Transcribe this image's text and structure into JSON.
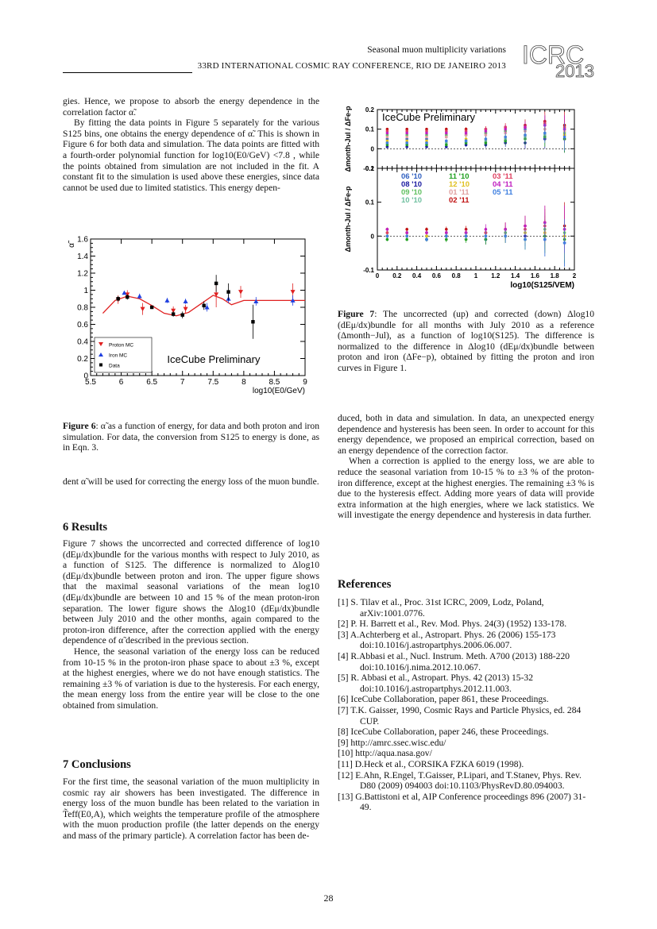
{
  "header": {
    "line1": "Seasonal muon multiplicity variations",
    "line2": "33RD INTERNATIONAL COSMIC RAY CONFERENCE, RIO DE JANEIRO 2013",
    "logo_text": "ICRC 2013"
  },
  "left": {
    "p1": "gies. Hence, we propose to absorb the energy dependence in the correlation factor α̃.",
    "p2": "By fitting the data points in Figure 5 separately for the various S125 bins, one obtains the energy dependence of α̃. This is shown in Figure 6 for both data and simulation. The data points are fitted with a fourth-order polynomial function for log10(E0/GeV) <7.8 , while the points obtained from simulation are not included in the fit. A constant fit to the simulation is used above these energies, since data cannot be used due to limited statistics. This energy depen-",
    "fig6_caption_label": "Figure 6",
    "fig6_caption": ": α̃ as a function of energy, for data and both proton and iron simulation. For data, the conversion from S125 to energy is done, as in Eqn. 3.",
    "p3": "dent α̃ will be used for correcting the energy loss of the muon bundle.",
    "sec6": "6   Results",
    "p4": "Figure 7 shows the uncorrected and corrected difference of log10 (dEμ/dx)bundle for the various months with respect to July 2010, as a function of S125. The difference is normalized to Δlog10 (dEμ/dx)bundle between proton and iron. The upper figure shows that the maximal seasonal variations of the mean log10 (dEμ/dx)bundle are between 10 and 15 % of the mean proton-iron separation. The lower figure shows the Δlog10 (dEμ/dx)bundle between July 2010 and the other months, again compared to the proton-iron difference, after the correction applied with the energy dependence of α̃ described in the previous section.",
    "p5": "Hence, the seasonal variation of the energy loss can be reduced from 10-15 % in the proton-iron phase space to about ±3 %, except at the highest energies, where we do not have enough statistics. The remaining ±3 % of variation is due to the hysteresis. For each energy, the mean energy loss from the entire year will be close to the one obtained from simulation.",
    "sec7": "7   Conclusions",
    "p6": "For the first time, the seasonal variation of the muon multiplicity in cosmic ray air showers has been investigated. The difference in energy loss of the muon bundle has been related to the variation in T̃eff(E0,A), which weights the temperature profile of the atmosphere with the muon production profile (the latter depends on the energy and mass of the primary particle). A correlation factor has been de-"
  },
  "right": {
    "fig7_caption_label": "Figure 7",
    "fig7_caption": ": The uncorrected (up) and corrected (down) Δlog10 (dEμ/dx)bundle for all months with July 2010 as a reference (Δmonth−Jul), as a function of log10(S125). The difference is normalized to the difference in Δlog10 (dEμ/dx)bundle between proton and iron (ΔFe−p), obtained by fitting the proton and iron curves in Figure 1.",
    "p1": "duced, both in data and simulation. In data, an unexpected energy dependence and hysteresis has been seen. In order to account for this energy dependence, we proposed an empirical correction, based on an energy dependence of the correction factor.",
    "p2": "When a correction is applied to the energy loss, we are able to reduce the seasonal variation from 10-15 % to ±3 % of the proton-iron difference, except at the highest energies. The remaining ±3 % is due to the hysteresis effect. Adding more years of data will provide extra information at the high energies, where we lack statistics. We will investigate the energy dependence and hysteresis in data further.",
    "refs_title": "References",
    "refs": [
      "[1]  S. Tilav et al., Proc. 31st ICRC, 2009, Lodz, Poland, arXiv:1001.0776.",
      "[2]  P. H. Barrett et al., Rev. Mod. Phys. 24(3) (1952) 133-178.",
      "[3]  A.Achterberg et al., Astropart. Phys. 26 (2006) 155-173 doi:10.1016/j.astropartphys.2006.06.007.",
      "[4]  R.Abbasi et al., Nucl. Instrum. Meth. A700 (2013) 188-220 doi:10.1016/j.nima.2012.10.067.",
      "[5]  R. Abbasi et al., Astropart. Phys. 42 (2013) 15-32 doi:10.1016/j.astropartphys.2012.11.003.",
      "[6]  IceCube Collaboration, paper 861, these Proceedings.",
      "[7]  T.K. Gaisser, 1990, Cosmic Rays and Particle Physics, ed. 284 CUP.",
      "[8]  IceCube Collaboration, paper 246, these Proceedings.",
      "[9]  http://amrc.ssec.wisc.edu/",
      "[10]  http://aqua.nasa.gov/",
      "[11]  D.Heck et al., CORSIKA FZKA 6019 (1998).",
      "[12]  E.Ahn, R.Engel, T.Gaisser, P.Lipari, and T.Stanev, Phys. Rev. D80 (2009) 094003 doi:10.1103/PhysRevD.80.094003.",
      "[13]  G.Battistoni et al, AIP Conference proceedings 896 (2007) 31-49."
    ]
  },
  "page_number": "28",
  "chart_data": [
    {
      "type": "scatter",
      "title": "IceCube Preliminary",
      "xlabel": "log10(E0/GeV)",
      "ylabel": "α̃",
      "xlim": [
        5.5,
        9
      ],
      "ylim": [
        0,
        1.6
      ],
      "xticks": [
        "5.5",
        "6",
        "6.5",
        "7",
        "7.5",
        "8",
        "8.5",
        "9"
      ],
      "yticks": [
        "0",
        "0.2",
        "0.4",
        "0.6",
        "0.8",
        "1",
        "1.2",
        "1.4",
        "1.6"
      ],
      "legend": [
        "Proton MC",
        "Iron MC",
        "Data"
      ],
      "legend_position": "bottom-left",
      "colors": {
        "proton": "#e02020",
        "iron": "#2040e0",
        "data": "#000000",
        "fit": "#e02020"
      },
      "series": [
        {
          "name": "Proton MC",
          "x": [
            5.95,
            6.1,
            6.35,
            6.85,
            7.05,
            7.55,
            7.95,
            8.8
          ],
          "y": [
            0.89,
            0.95,
            0.78,
            0.76,
            0.78,
            0.95,
            0.98,
            0.98
          ],
          "err": [
            0.05,
            0.05,
            0.07,
            0.05,
            0.05,
            0.15,
            0.07,
            0.1
          ]
        },
        {
          "name": "Iron MC",
          "x": [
            6.05,
            6.3,
            6.75,
            7.05,
            7.4,
            7.75,
            8.2,
            8.8
          ],
          "y": [
            0.97,
            0.93,
            0.88,
            0.87,
            0.8,
            0.9,
            0.87,
            0.88
          ],
          "err": [
            0.02,
            0.03,
            0.03,
            0.03,
            0.05,
            0.05,
            0.05,
            0.06
          ]
        },
        {
          "name": "Data",
          "x": [
            5.95,
            6.1,
            6.5,
            6.85,
            7.0,
            7.35,
            7.55,
            7.75,
            8.15
          ],
          "y": [
            0.9,
            0.92,
            0.8,
            0.72,
            0.71,
            0.82,
            1.08,
            0.98,
            0.63
          ],
          "err": [
            0.03,
            0.03,
            0.02,
            0.03,
            0.04,
            0.05,
            0.1,
            0.1,
            0.2
          ]
        }
      ],
      "fit": {
        "name": "fit",
        "x": [
          5.7,
          5.9,
          6.1,
          6.3,
          6.5,
          6.7,
          6.9,
          7.1,
          7.3,
          7.5,
          7.65,
          7.8,
          8.0,
          8.5,
          9.0
        ],
        "y": [
          0.73,
          0.88,
          0.93,
          0.9,
          0.82,
          0.73,
          0.7,
          0.74,
          0.84,
          0.94,
          0.9,
          0.83,
          0.88,
          0.88,
          0.88
        ]
      }
    },
    {
      "type": "scatter",
      "title": "IceCube Preliminary",
      "xlabel": "log10(S125/VEM)",
      "ylabel_top": "Δmonth-Jul / ΔFe-p",
      "ylabel_bottom": "Δmonth-Jul / ΔFe-p",
      "xlim": [
        0,
        2
      ],
      "ylim_top": [
        -0.1,
        0.2
      ],
      "ylim_bottom": [
        -0.1,
        0.2
      ],
      "xticks": [
        "0",
        "0.2",
        "0.4",
        "0.6",
        "0.8",
        "1",
        "1.2",
        "1.4",
        "1.6",
        "1.8",
        "2"
      ],
      "yticks": [
        "-0.1",
        "0",
        "0.1",
        "0.2"
      ],
      "x_points": [
        0.1,
        0.3,
        0.5,
        0.7,
        0.9,
        1.1,
        1.3,
        1.5,
        1.7,
        1.9
      ],
      "legend": [
        {
          "label": "06 '10",
          "color": "#3060c0"
        },
        {
          "label": "08 '10",
          "color": "#1a1aa0"
        },
        {
          "label": "09 '10",
          "color": "#60c060"
        },
        {
          "label": "10 '10",
          "color": "#70c0a0"
        },
        {
          "label": "11 '10",
          "color": "#20a020"
        },
        {
          "label": "12 '10",
          "color": "#e0c020"
        },
        {
          "label": "01 '11",
          "color": "#e0a0a0"
        },
        {
          "label": "02 '11",
          "color": "#c01010"
        },
        {
          "label": "03 '11",
          "color": "#e04060"
        },
        {
          "label": "04 '11",
          "color": "#c020c0"
        },
        {
          "label": "05 '11",
          "color": "#4080e0"
        }
      ],
      "top_values_per_month": [
        [
          0.05,
          0.05,
          0.05,
          0.06,
          0.07,
          0.08,
          0.09,
          0.1,
          0.12,
          0.1
        ],
        [
          0.01,
          0.01,
          0.01,
          0.01,
          0.02,
          0.02,
          0.03,
          0.03,
          0.05,
          0.05
        ],
        [
          0.07,
          0.07,
          0.07,
          0.07,
          0.07,
          0.08,
          0.09,
          0.09,
          0.1,
          0.08
        ],
        [
          0.03,
          0.03,
          0.03,
          0.03,
          0.04,
          0.04,
          0.05,
          0.06,
          0.07,
          0.07
        ],
        [
          0.02,
          0.02,
          0.02,
          0.02,
          0.03,
          0.03,
          0.04,
          0.05,
          0.06,
          0.05
        ],
        [
          0.04,
          0.04,
          0.04,
          0.04,
          0.05,
          0.05,
          0.06,
          0.07,
          0.08,
          0.07
        ],
        [
          0.06,
          0.06,
          0.06,
          0.06,
          0.07,
          0.07,
          0.08,
          0.09,
          0.1,
          0.09
        ],
        [
          0.1,
          0.1,
          0.1,
          0.1,
          0.1,
          0.1,
          0.11,
          0.12,
          0.14,
          0.12
        ],
        [
          0.09,
          0.09,
          0.09,
          0.09,
          0.09,
          0.1,
          0.11,
          0.11,
          0.13,
          0.11
        ],
        [
          0.08,
          0.08,
          0.08,
          0.08,
          0.08,
          0.09,
          0.1,
          0.11,
          0.12,
          0.1
        ],
        [
          0.03,
          0.03,
          0.03,
          0.04,
          0.04,
          0.05,
          0.06,
          0.07,
          0.08,
          0.06
        ]
      ],
      "bottom_values_per_month": [
        [
          0.0,
          0.0,
          0.0,
          0.01,
          0.01,
          0.0,
          0.01,
          0.02,
          0.01,
          0.0
        ],
        [
          0.0,
          0.0,
          -0.01,
          0.0,
          0.0,
          -0.01,
          0.0,
          0.0,
          -0.01,
          -0.02
        ],
        [
          0.01,
          0.01,
          0.0,
          0.0,
          0.01,
          0.0,
          0.01,
          0.01,
          0.02,
          0.01
        ],
        [
          0.0,
          0.0,
          0.0,
          0.0,
          0.0,
          0.0,
          0.0,
          0.01,
          0.0,
          0.0
        ],
        [
          -0.01,
          -0.01,
          -0.01,
          -0.01,
          -0.01,
          -0.01,
          0.0,
          -0.01,
          0.0,
          -0.01
        ],
        [
          0.0,
          0.0,
          0.0,
          0.0,
          0.0,
          0.01,
          0.0,
          0.01,
          0.01,
          0.0
        ],
        [
          0.01,
          0.01,
          0.01,
          0.01,
          0.01,
          0.01,
          0.02,
          0.02,
          0.03,
          0.02
        ],
        [
          0.02,
          0.02,
          0.02,
          0.02,
          0.02,
          0.01,
          0.02,
          0.03,
          0.04,
          0.03
        ],
        [
          0.01,
          0.01,
          0.01,
          0.01,
          0.01,
          0.01,
          0.02,
          0.02,
          0.03,
          0.02
        ],
        [
          0.02,
          0.01,
          0.01,
          0.01,
          0.01,
          0.02,
          0.02,
          0.03,
          0.04,
          0.02
        ],
        [
          0.0,
          0.0,
          -0.01,
          0.0,
          0.0,
          0.0,
          0.0,
          -0.01,
          -0.01,
          -0.02
        ]
      ],
      "errors": [
        0.005,
        0.005,
        0.006,
        0.008,
        0.01,
        0.015,
        0.02,
        0.03,
        0.05,
        0.07
      ]
    }
  ]
}
